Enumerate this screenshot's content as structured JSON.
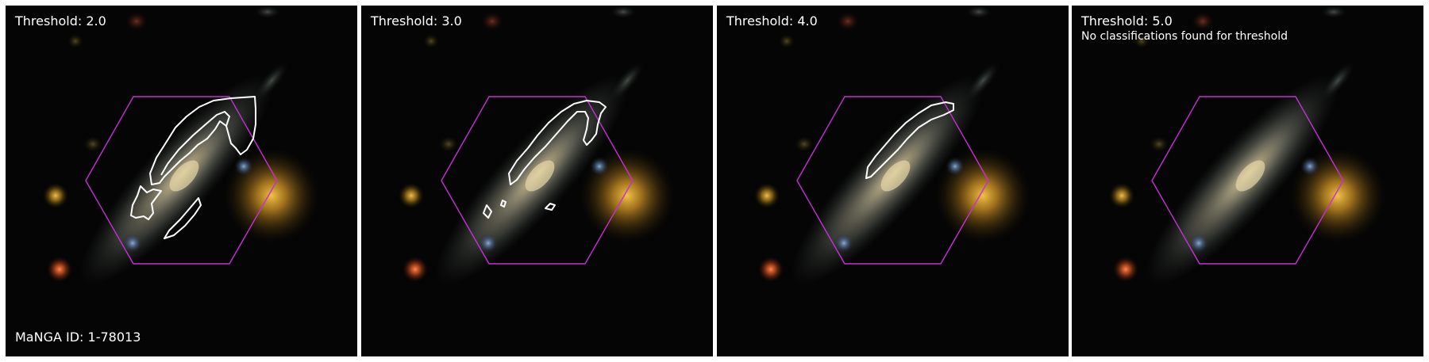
{
  "manga_id_label": "MaNGA ID: 1-78013",
  "panels": [
    {
      "threshold_label": "Threshold: 2.0",
      "note": ""
    },
    {
      "threshold_label": "Threshold: 3.0",
      "note": ""
    },
    {
      "threshold_label": "Threshold: 4.0",
      "note": ""
    },
    {
      "threshold_label": "Threshold: 5.0",
      "note": "No classifications found for threshold"
    }
  ],
  "colors": {
    "background": "#050505",
    "hexagon": "#c62fd6",
    "contour": "#ffffff",
    "label_text": "#ffffff"
  }
}
